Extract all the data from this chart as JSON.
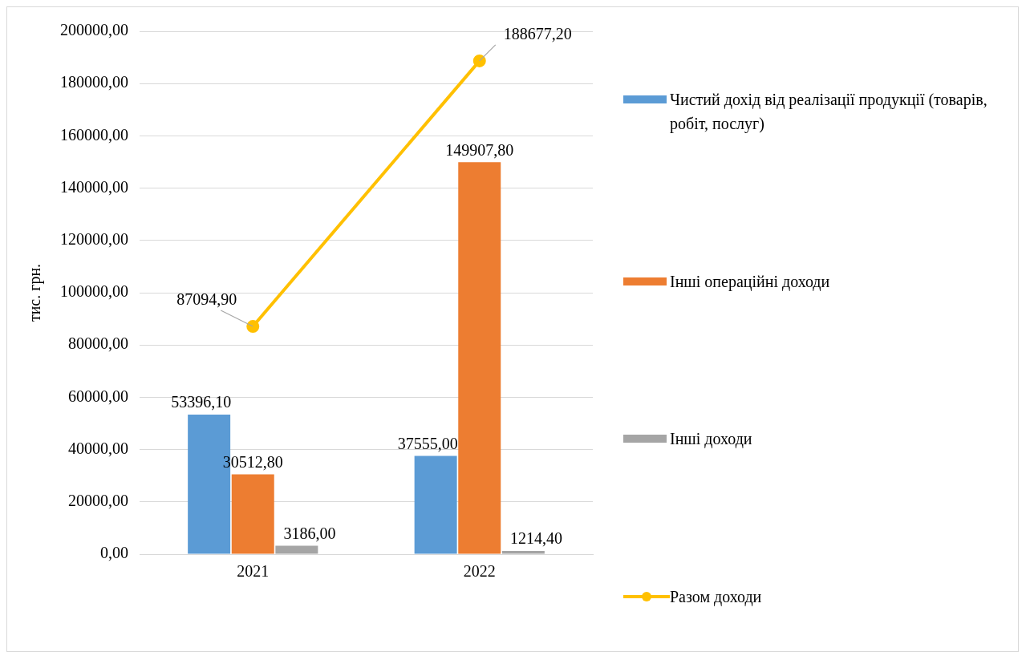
{
  "chart_data": {
    "type": "bar",
    "ylabel": "тис. грн.",
    "categories": [
      "2021",
      "2022"
    ],
    "series": [
      {
        "name": "Чистий дохід від реалізації продукції (товарів, робіт, послуг)",
        "color": "#5b9bd5",
        "values": [
          53396.1,
          37555.0
        ],
        "value_labels": [
          "53396,10",
          "37555,00"
        ]
      },
      {
        "name": "Інші операційні доходи",
        "color": "#ed7d31",
        "values": [
          30512.8,
          149907.8
        ],
        "value_labels": [
          "30512,80",
          "149907,80"
        ]
      },
      {
        "name": "Інші доходи",
        "color": "#a5a5a5",
        "values": [
          3186.0,
          1214.4
        ],
        "value_labels": [
          "3186,00",
          "1214,40"
        ]
      },
      {
        "name": "Разом доходи",
        "type": "line",
        "color": "#ffc000",
        "marker": "circle",
        "values": [
          87094.9,
          188677.2
        ],
        "value_labels": [
          "87094,90",
          "188677,20"
        ]
      }
    ],
    "ylim": [
      0,
      200000
    ],
    "yticks": [
      {
        "value": 0,
        "label": "0,00"
      },
      {
        "value": 20000,
        "label": "20000,00"
      },
      {
        "value": 40000,
        "label": "40000,00"
      },
      {
        "value": 60000,
        "label": "60000,00"
      },
      {
        "value": 80000,
        "label": "80000,00"
      },
      {
        "value": 100000,
        "label": "100000,00"
      },
      {
        "value": 120000,
        "label": "120000,00"
      },
      {
        "value": 140000,
        "label": "140000,00"
      },
      {
        "value": 160000,
        "label": "160000,00"
      },
      {
        "value": 180000,
        "label": "180000,00"
      },
      {
        "value": 200000,
        "label": "200000,00"
      }
    ],
    "grid": "y",
    "legend": "right"
  }
}
